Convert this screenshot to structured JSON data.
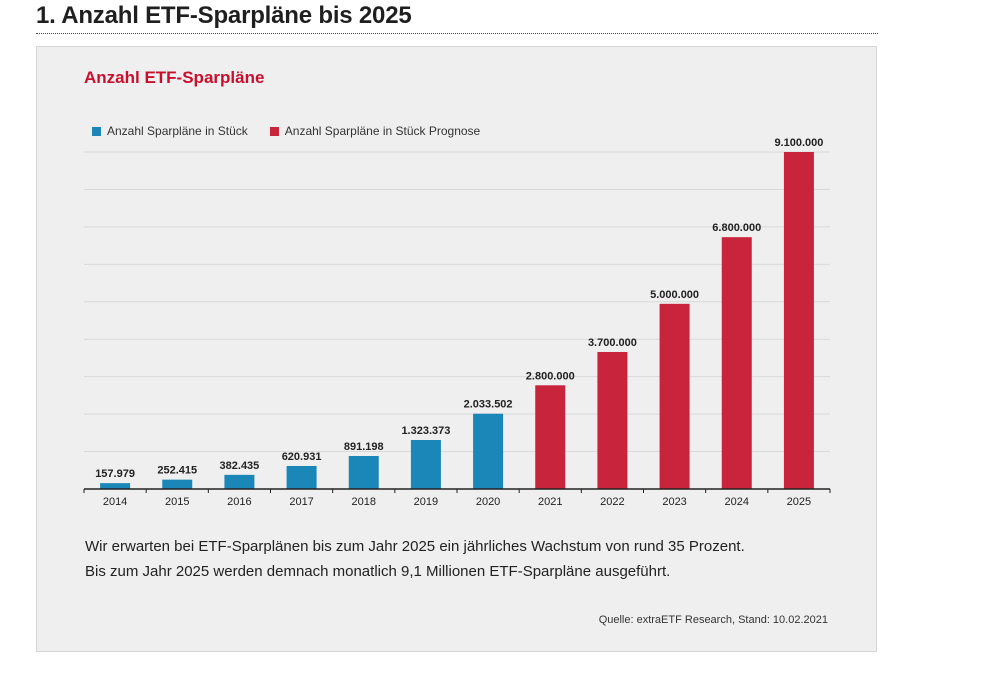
{
  "page": {
    "heading": "1. Anzahl ETF-Sparpläne bis 2025"
  },
  "card": {
    "caption_line1": "Wir erwarten bei ETF-Sparplänen bis zum Jahr 2025 ein jährliches Wachstum von rund 35 Prozent.",
    "caption_line2": "Bis zum Jahr 2025 werden demnach monatlich 9,1 Millionen ETF-Sparpläne ausgeführt.",
    "source": "Quelle: extraETF Research, Stand: 10.02.2021"
  },
  "chart_data": {
    "type": "bar",
    "title": "Anzahl ETF-Sparpläne",
    "xlabel": "",
    "ylabel": "",
    "ylim": [
      0,
      9100000
    ],
    "grid": true,
    "legend_position": "top-left",
    "categories": [
      "2014",
      "2015",
      "2016",
      "2017",
      "2018",
      "2019",
      "2020",
      "2021",
      "2022",
      "2023",
      "2024",
      "2025"
    ],
    "series": [
      {
        "name": "Anzahl Sparpläne in Stück",
        "color": "#1a87b8",
        "values": [
          157979,
          252415,
          382435,
          620931,
          891198,
          1323373,
          2033502,
          null,
          null,
          null,
          null,
          null
        ],
        "labels": [
          "157.979",
          "252.415",
          "382.435",
          "620.931",
          "891.198",
          "1.323.373",
          "2.033.502",
          null,
          null,
          null,
          null,
          null
        ]
      },
      {
        "name": "Anzahl Sparpläne in Stück Prognose",
        "color": "#c8243c",
        "values": [
          null,
          null,
          null,
          null,
          null,
          null,
          null,
          2800000,
          3700000,
          5000000,
          6800000,
          9100000
        ],
        "labels": [
          null,
          null,
          null,
          null,
          null,
          null,
          null,
          "2.800.000",
          "3.700.000",
          "5.000.000",
          "6.800.000",
          "9.100.000"
        ]
      }
    ]
  }
}
